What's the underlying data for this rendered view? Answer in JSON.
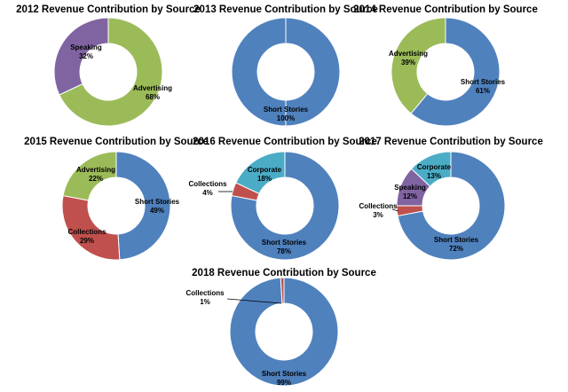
{
  "colors": {
    "Advertising": "#9BBB59",
    "Speaking": "#8064A2",
    "Short Stories": "#4F81BD",
    "Collections": "#C0504D",
    "Corporate": "#4BACC6",
    "label_text": "#000000",
    "slice_border": "#ffffff"
  },
  "chart_data": [
    {
      "type": "pie",
      "title": "2012 Revenue Contribution by Source",
      "slices": [
        {
          "name": "Advertising",
          "value": 68,
          "label_pct": "68%"
        },
        {
          "name": "Speaking",
          "value": 32,
          "label_pct": "32%"
        }
      ]
    },
    {
      "type": "pie",
      "title": "2013 Revenue Contribution by Source",
      "slices": [
        {
          "name": "Short Stories",
          "value": 100,
          "label_pct": "100%"
        }
      ]
    },
    {
      "type": "pie",
      "title": "2014 Revenue Contribution by Source",
      "slices": [
        {
          "name": "Short Stories",
          "value": 61,
          "label_pct": "61%"
        },
        {
          "name": "Advertising",
          "value": 39,
          "label_pct": "39%"
        }
      ]
    },
    {
      "type": "pie",
      "title": "2015 Revenue Contribution by Source",
      "slices": [
        {
          "name": "Short Stories",
          "value": 49,
          "label_pct": "49%"
        },
        {
          "name": "Collections",
          "value": 29,
          "label_pct": "29%"
        },
        {
          "name": "Advertising",
          "value": 22,
          "label_pct": "22%"
        }
      ]
    },
    {
      "type": "pie",
      "title": "2016 Revenue Contribution by Source",
      "slices": [
        {
          "name": "Short Stories",
          "value": 78,
          "label_pct": "78%"
        },
        {
          "name": "Collections",
          "value": 4,
          "label_pct": "4%"
        },
        {
          "name": "Corporate",
          "value": 18,
          "label_pct": "18%"
        }
      ]
    },
    {
      "type": "pie",
      "title": "2017 Revenue Contribution by Source",
      "slices": [
        {
          "name": "Short Stories",
          "value": 72,
          "label_pct": "72%"
        },
        {
          "name": "Collections",
          "value": 3,
          "label_pct": "3%"
        },
        {
          "name": "Speaking",
          "value": 12,
          "label_pct": "12%"
        },
        {
          "name": "Corporate",
          "value": 13,
          "label_pct": "13%"
        }
      ]
    },
    {
      "type": "pie",
      "title": "2018 Revenue Contribution by Source",
      "slices": [
        {
          "name": "Short Stories",
          "value": 99,
          "label_pct": "99%"
        },
        {
          "name": "Collections",
          "value": 1,
          "label_pct": "1%"
        }
      ]
    }
  ]
}
